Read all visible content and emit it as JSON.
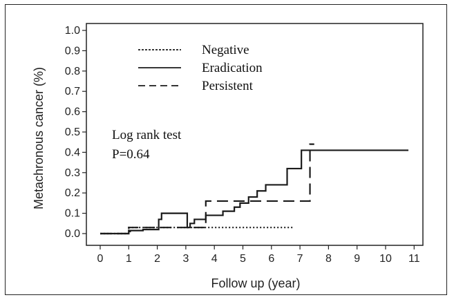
{
  "chart_data": {
    "type": "line",
    "step": true,
    "title": "",
    "xlabel": "Follow up (year)",
    "ylabel": "Metachronous cancer (%)",
    "xlim": [
      0,
      11
    ],
    "ylim": [
      0,
      1.0
    ],
    "xticks": [
      "0",
      "1",
      "2",
      "3",
      "4",
      "5",
      "6",
      "7",
      "8",
      "9",
      "10",
      "11"
    ],
    "yticks": [
      "0.0",
      "0.1",
      "0.2",
      "0.3",
      "0.4",
      "0.5",
      "0.6",
      "0.7",
      "0.8",
      "0.9",
      "1.0"
    ],
    "legend_position": "top-left",
    "grid": false,
    "series": [
      {
        "name": "Negative",
        "style": "dotted",
        "x": [
          0,
          1.0,
          6.75
        ],
        "y": [
          0,
          0.03,
          0.03
        ]
      },
      {
        "name": "Eradication",
        "style": "solid",
        "x": [
          0,
          1.0,
          1.05,
          1.5,
          2.0,
          2.05,
          2.15,
          2.5,
          2.8,
          3.05,
          3.15,
          3.3,
          3.7,
          3.75,
          4.05,
          4.3,
          4.7,
          4.9,
          5.2,
          5.5,
          5.8,
          6.1,
          6.4,
          6.55,
          6.85,
          7.05,
          10.8
        ],
        "y": [
          0,
          0.01,
          0.015,
          0.02,
          0.02,
          0.07,
          0.1,
          0.1,
          0.1,
          0.03,
          0.05,
          0.07,
          0.09,
          0.09,
          0.09,
          0.11,
          0.13,
          0.15,
          0.18,
          0.21,
          0.24,
          0.24,
          0.24,
          0.32,
          0.32,
          0.41,
          0.41
        ]
      },
      {
        "name": "Persistent",
        "style": "dashed",
        "x": [
          0,
          1.0,
          3.7,
          7.3,
          7.35,
          7.5
        ],
        "y": [
          0,
          0.03,
          0.16,
          0.16,
          0.44,
          0.44
        ]
      }
    ],
    "annotations": [
      "Log rank test",
      "P=0.64"
    ]
  },
  "colors": {
    "line": "#1a1a1a",
    "axis": "#222222"
  }
}
